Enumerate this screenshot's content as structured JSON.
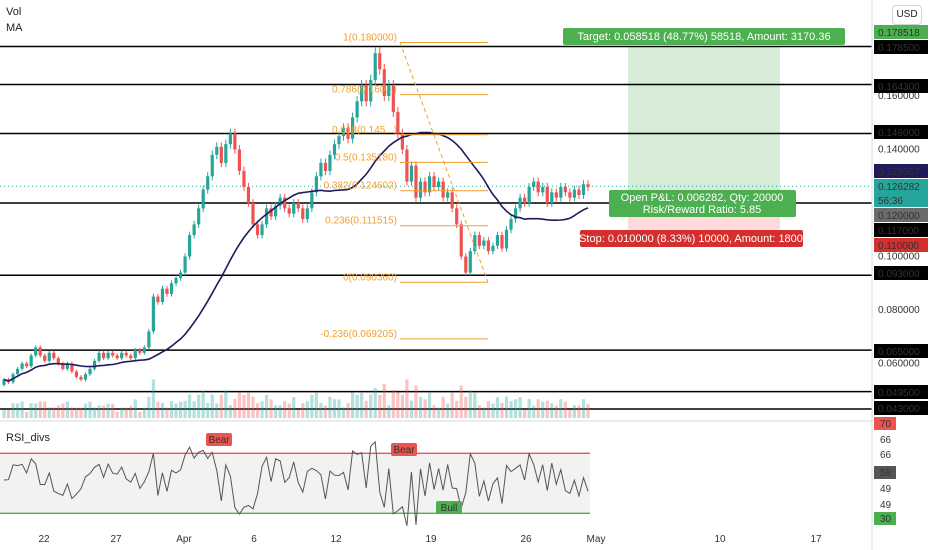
{
  "legend": {
    "vol": "Vol",
    "ma": "MA",
    "rsi": "RSI_divs"
  },
  "currency_button": "USD",
  "colors": {
    "up": "#26a69a",
    "down": "#ef5350",
    "ma": "#1f1a5e",
    "fib": "#f0a030",
    "target_zone": "#c8e6c9",
    "stop_zone": "#ffcdd2",
    "rsi_line": "#555555"
  },
  "chart_data": {
    "type": "candlestick",
    "price_axis": {
      "ticks": [
        0.16,
        0.14,
        0.1,
        0.08,
        0.06
      ],
      "range": [
        0.038,
        0.192
      ]
    },
    "x_axis": {
      "labels": [
        "22",
        "27",
        "Apr",
        "6",
        "12",
        "19",
        "26",
        "May",
        "10",
        "17"
      ]
    },
    "horizontal_levels": [
      0.1785,
      0.1643,
      0.146,
      0.12,
      0.093,
      0.065,
      0.0495,
      0.043
    ],
    "price_tags": [
      {
        "value": "0.178518",
        "kind": "target"
      },
      {
        "value": "0.178500",
        "kind": "level"
      },
      {
        "value": "0.164300",
        "kind": "level"
      },
      {
        "value": "0.146000",
        "kind": "level"
      },
      {
        "value": "0.129057",
        "kind": "ma"
      },
      {
        "value": "0.126282",
        "kind": "last"
      },
      {
        "value": "56:36",
        "kind": "countdown"
      },
      {
        "value": "0.120000",
        "kind": "entry"
      },
      {
        "value": "0.117000",
        "kind": "level"
      },
      {
        "value": "0.110000",
        "kind": "stop"
      },
      {
        "value": "0.093000",
        "kind": "level"
      },
      {
        "value": "0.065000",
        "kind": "level"
      },
      {
        "value": "0.049500",
        "kind": "level"
      },
      {
        "value": "0.043000",
        "kind": "level"
      }
    ],
    "fibonacci": [
      {
        "label": "1(0.180000)",
        "price": 0.18
      },
      {
        "label": "0.786(0.160...)",
        "price": 0.1605
      },
      {
        "label": "0.618(0.145...)",
        "price": 0.1455
      },
      {
        "label": "0.5(0.135180)",
        "price": 0.13518
      },
      {
        "label": "0.382(0.124602)",
        "price": 0.124602
      },
      {
        "label": "0.236(0.111515)",
        "price": 0.111515
      },
      {
        "label": "0(0.090360)",
        "price": 0.09036
      },
      {
        "label": "-0.236(0.069205)",
        "price": 0.069205
      }
    ],
    "position": {
      "target_label": "Target: 0.058518 (48.77%) 58518, Amount: 3170.36",
      "pnl_label_1": "Open P&L: 0.006282, Qty: 20000",
      "pnl_label_2": "Risk/Reward Ratio: 5.85",
      "stop_label": "Stop: 0.010000 (8.33%) 10000, Amount: 1800",
      "entry": 0.12,
      "target": 0.178518,
      "stop": 0.11
    },
    "ma_value": 0.129057,
    "last_price": 0.126282,
    "rsi": {
      "ticks": [
        "70",
        "66",
        "66",
        "59",
        "49",
        "49",
        "30"
      ],
      "overbought": 66,
      "oversold": 30,
      "current": 59,
      "divergence_labels": [
        "Bear",
        "Bear",
        "Bull"
      ]
    },
    "candles": [
      [
        0.052,
        0.054
      ],
      [
        0.054,
        0.053
      ],
      [
        0.053,
        0.056
      ],
      [
        0.056,
        0.058
      ],
      [
        0.058,
        0.06
      ],
      [
        0.06,
        0.059
      ],
      [
        0.059,
        0.063
      ],
      [
        0.063,
        0.066
      ],
      [
        0.066,
        0.063
      ],
      [
        0.063,
        0.061
      ],
      [
        0.061,
        0.064
      ],
      [
        0.064,
        0.062
      ],
      [
        0.062,
        0.06
      ],
      [
        0.06,
        0.058
      ],
      [
        0.058,
        0.06
      ],
      [
        0.06,
        0.057
      ],
      [
        0.057,
        0.055
      ],
      [
        0.055,
        0.054
      ],
      [
        0.054,
        0.056
      ],
      [
        0.056,
        0.058
      ],
      [
        0.058,
        0.061
      ],
      [
        0.061,
        0.064
      ],
      [
        0.064,
        0.062
      ],
      [
        0.062,
        0.064
      ],
      [
        0.064,
        0.063
      ],
      [
        0.063,
        0.062
      ],
      [
        0.062,
        0.064
      ],
      [
        0.064,
        0.063
      ],
      [
        0.063,
        0.062
      ],
      [
        0.062,
        0.065
      ],
      [
        0.065,
        0.064
      ],
      [
        0.064,
        0.066
      ],
      [
        0.066,
        0.072
      ],
      [
        0.072,
        0.085
      ],
      [
        0.085,
        0.083
      ],
      [
        0.083,
        0.088
      ],
      [
        0.088,
        0.086
      ],
      [
        0.086,
        0.09
      ],
      [
        0.09,
        0.092
      ],
      [
        0.092,
        0.094
      ],
      [
        0.094,
        0.1
      ],
      [
        0.1,
        0.108
      ],
      [
        0.108,
        0.112
      ],
      [
        0.112,
        0.118
      ],
      [
        0.118,
        0.125
      ],
      [
        0.125,
        0.13
      ],
      [
        0.13,
        0.138
      ],
      [
        0.138,
        0.141
      ],
      [
        0.141,
        0.135
      ],
      [
        0.135,
        0.142
      ],
      [
        0.142,
        0.146
      ],
      [
        0.146,
        0.14
      ],
      [
        0.14,
        0.132
      ],
      [
        0.132,
        0.126
      ],
      [
        0.126,
        0.12
      ],
      [
        0.12,
        0.112
      ],
      [
        0.112,
        0.108
      ],
      [
        0.108,
        0.112
      ],
      [
        0.112,
        0.118
      ],
      [
        0.118,
        0.115
      ],
      [
        0.115,
        0.119
      ],
      [
        0.119,
        0.122
      ],
      [
        0.122,
        0.118
      ],
      [
        0.118,
        0.116
      ],
      [
        0.116,
        0.12
      ],
      [
        0.12,
        0.118
      ],
      [
        0.118,
        0.114
      ],
      [
        0.114,
        0.118
      ],
      [
        0.118,
        0.124
      ],
      [
        0.124,
        0.13
      ],
      [
        0.13,
        0.135
      ],
      [
        0.135,
        0.132
      ],
      [
        0.132,
        0.138
      ],
      [
        0.138,
        0.142
      ],
      [
        0.142,
        0.145
      ],
      [
        0.145,
        0.148
      ],
      [
        0.148,
        0.144
      ],
      [
        0.144,
        0.152
      ],
      [
        0.152,
        0.158
      ],
      [
        0.158,
        0.164
      ],
      [
        0.164,
        0.158
      ],
      [
        0.158,
        0.166
      ],
      [
        0.166,
        0.176
      ],
      [
        0.176,
        0.17
      ],
      [
        0.17,
        0.16
      ],
      [
        0.16,
        0.164
      ],
      [
        0.164,
        0.154
      ],
      [
        0.154,
        0.146
      ],
      [
        0.146,
        0.14
      ],
      [
        0.14,
        0.128
      ],
      [
        0.128,
        0.134
      ],
      [
        0.134,
        0.122
      ],
      [
        0.122,
        0.128
      ],
      [
        0.128,
        0.124
      ],
      [
        0.124,
        0.13
      ],
      [
        0.13,
        0.126
      ],
      [
        0.126,
        0.128
      ],
      [
        0.128,
        0.122
      ],
      [
        0.122,
        0.124
      ],
      [
        0.124,
        0.118
      ],
      [
        0.118,
        0.112
      ],
      [
        0.112,
        0.1
      ],
      [
        0.1,
        0.094
      ],
      [
        0.094,
        0.102
      ],
      [
        0.102,
        0.108
      ],
      [
        0.108,
        0.104
      ],
      [
        0.104,
        0.106
      ],
      [
        0.106,
        0.102
      ],
      [
        0.102,
        0.104
      ],
      [
        0.104,
        0.108
      ],
      [
        0.108,
        0.103
      ],
      [
        0.103,
        0.11
      ],
      [
        0.11,
        0.114
      ],
      [
        0.114,
        0.118
      ],
      [
        0.118,
        0.122
      ],
      [
        0.122,
        0.12
      ],
      [
        0.12,
        0.126
      ],
      [
        0.126,
        0.128
      ],
      [
        0.128,
        0.124
      ],
      [
        0.124,
        0.126
      ],
      [
        0.126,
        0.12
      ],
      [
        0.12,
        0.124
      ],
      [
        0.124,
        0.122
      ],
      [
        0.122,
        0.126
      ],
      [
        0.126,
        0.124
      ],
      [
        0.124,
        0.122
      ],
      [
        0.122,
        0.125
      ],
      [
        0.125,
        0.123
      ],
      [
        0.123,
        0.127
      ],
      [
        0.127,
        0.126
      ]
    ]
  }
}
